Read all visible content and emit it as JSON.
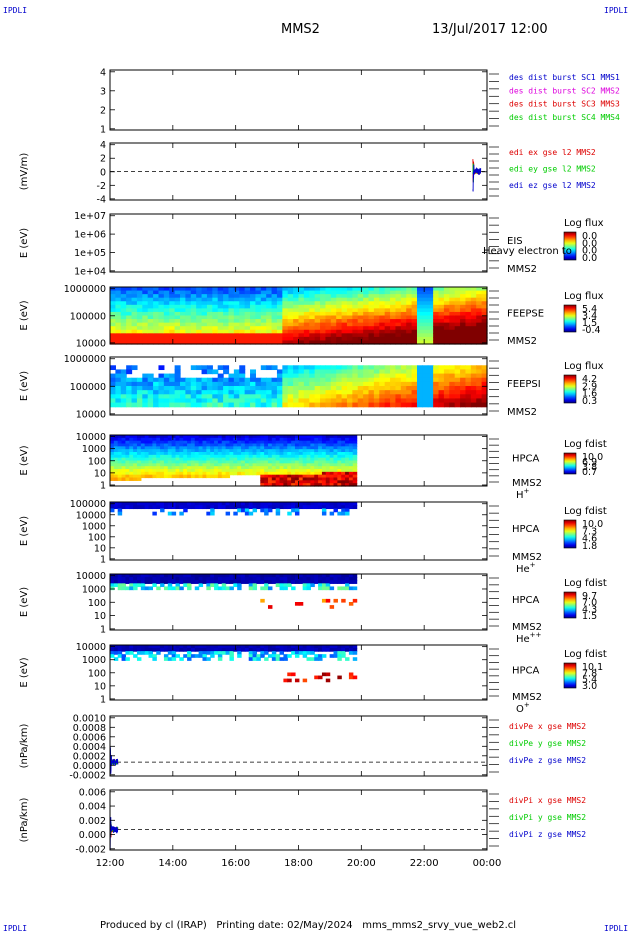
{
  "header": {
    "corner_label": "IPDLI",
    "spacecraft": "MMS2",
    "datetime": "13/Jul/2017 12:00"
  },
  "footer": {
    "produced_by": "Produced by cl (IRAP)",
    "printing_date": "Printing date: 02/May/2024",
    "script": "mms_mms2_srvy_vue_web2.cl"
  },
  "colors": {
    "red": "#dd0000",
    "magenta": "#dd00dd",
    "green": "#00cc00",
    "blue": "#0000cc"
  },
  "chart_data": [
    {
      "type": "line",
      "ytick_labels": [
        "1",
        "2",
        "3",
        "4"
      ],
      "ylim": [
        0.7,
        4.5
      ],
      "legend": [
        {
          "name": "des dist burst SC1 MMS1",
          "color": "#0000cc"
        },
        {
          "name": "des dist burst SC2 MMS2",
          "color": "#dd00dd"
        },
        {
          "name": "des dist burst SC3 MMS3",
          "color": "#dd0000"
        },
        {
          "name": "des dist burst SC4 MMS4",
          "color": "#00cc00"
        }
      ]
    },
    {
      "type": "line",
      "ylabel": "(mV/m)",
      "ytick_labels": [
        "-4",
        "-2",
        "0",
        "2",
        "4"
      ],
      "ylim": [
        -5,
        5
      ],
      "zero_line": 0,
      "legend": [
        {
          "name": "edi ex gse l2 MMS2",
          "color": "#dd0000"
        },
        {
          "name": "edi ey gse l2 MMS2",
          "color": "#00cc00"
        },
        {
          "name": "edi ez gse l2 MMS2",
          "color": "#0000cc"
        }
      ],
      "data_time_range_hours": [
        23.55,
        23.8
      ]
    },
    {
      "type": "heatmap",
      "ylabel": "E (eV)",
      "ytick_labels": [
        "1e+04",
        "1e+05",
        "1e+06",
        "1e+07"
      ],
      "log_y": true,
      "instrument": "EIS",
      "overlay_text": "Heavy electron to",
      "spacecraft": "MMS2",
      "colorbar": {
        "title": "Log flux",
        "ticks": [
          "0.0",
          "0.0",
          "0.0",
          "0.0"
        ]
      },
      "empty": true
    },
    {
      "type": "heatmap",
      "ylabel": "E (eV)",
      "ytick_labels": [
        "10000",
        "100000",
        "1000000"
      ],
      "log_y": true,
      "instrument": "FEEPSE",
      "spacecraft": "MMS2",
      "colorbar": {
        "title": "Log flux",
        "ticks": [
          "5.4",
          "3.4",
          "1.5",
          "-0.4"
        ]
      }
    },
    {
      "type": "heatmap",
      "ylabel": "E (eV)",
      "ytick_labels": [
        "10000",
        "100000",
        "1000000"
      ],
      "log_y": true,
      "instrument": "FEEPSI",
      "spacecraft": "MMS2",
      "colorbar": {
        "title": "Log flux",
        "ticks": [
          "4.2",
          "2.9",
          "1.6",
          "0.3"
        ]
      }
    },
    {
      "type": "heatmap",
      "ylabel": "E (eV)",
      "ytick_labels": [
        "1",
        "10",
        "100",
        "1000",
        "10000"
      ],
      "log_y": true,
      "instrument": "HPCA",
      "spacecraft": "MMS2",
      "species": "H",
      "species_charge": "+",
      "colorbar": {
        "title": "Log fdist",
        "ticks": [
          "10.0",
          "6.9",
          "3.8",
          "0.7"
        ]
      },
      "data_time_range_hours": [
        12.0,
        19.85
      ]
    },
    {
      "type": "heatmap",
      "ylabel": "E (eV)",
      "ytick_labels": [
        "1",
        "10",
        "100",
        "1000",
        "10000",
        "100000"
      ],
      "log_y": true,
      "instrument": "HPCA",
      "spacecraft": "MMS2",
      "species": "He",
      "species_charge": "+",
      "colorbar": {
        "title": "Log fdist",
        "ticks": [
          "10.0",
          "7.3",
          "4.6",
          "1.8"
        ]
      },
      "data_time_range_hours": [
        12.0,
        19.85
      ]
    },
    {
      "type": "heatmap",
      "ylabel": "E (eV)",
      "ytick_labels": [
        "1",
        "10",
        "100",
        "1000",
        "10000"
      ],
      "log_y": true,
      "instrument": "HPCA",
      "spacecraft": "MMS2",
      "species": "He",
      "species_charge": "++",
      "colorbar": {
        "title": "Log fdist",
        "ticks": [
          "9.7",
          "7.0",
          "4.3",
          "1.5"
        ]
      },
      "data_time_range_hours": [
        12.0,
        19.85
      ]
    },
    {
      "type": "heatmap",
      "ylabel": "E (eV)",
      "ytick_labels": [
        "1",
        "10",
        "100",
        "1000",
        "10000"
      ],
      "log_y": true,
      "instrument": "HPCA",
      "spacecraft": "MMS2",
      "species": "O",
      "species_charge": "+",
      "colorbar": {
        "title": "Log fdist",
        "ticks": [
          "10.1",
          "7.8",
          "5.4",
          "3.0"
        ]
      },
      "data_time_range_hours": [
        12.0,
        19.85
      ]
    },
    {
      "type": "line",
      "ylabel": "(nPa/km)",
      "ytick_labels": [
        "-0.0002",
        "0.0000",
        "0.0002",
        "0.0004",
        "0.0006",
        "0.0008",
        "0.0010"
      ],
      "ylim": [
        -0.0003,
        0.001
      ],
      "zero_line": 0,
      "legend": [
        {
          "name": "divPe x gse MMS2",
          "color": "#dd0000"
        },
        {
          "name": "divPe y gse MMS2",
          "color": "#00cc00"
        },
        {
          "name": "divPe z gse MMS2",
          "color": "#0000cc"
        }
      ],
      "data_time_range_hours": [
        12.0,
        12.25
      ]
    },
    {
      "type": "line",
      "ylabel": "(nPa/km)",
      "ytick_labels": [
        "-0.002",
        "0.000",
        "0.002",
        "0.004",
        "0.006"
      ],
      "ylim": [
        -0.0035,
        0.0068
      ],
      "zero_line": 0,
      "legend": [
        {
          "name": "divPi x gse MMS2",
          "color": "#dd0000"
        },
        {
          "name": "divPi y gse MMS2",
          "color": "#00cc00"
        },
        {
          "name": "divPi z gse MMS2",
          "color": "#0000cc"
        }
      ],
      "data_time_range_hours": [
        12.0,
        12.25
      ]
    }
  ],
  "x_axis": {
    "range_hours": [
      12,
      24
    ],
    "tick_labels": [
      "12:00",
      "14:00",
      "16:00",
      "18:00",
      "20:00",
      "22:00",
      "00:00"
    ]
  }
}
